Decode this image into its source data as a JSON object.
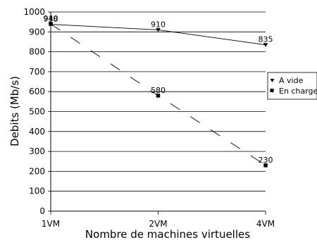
{
  "chart_data": {
    "type": "line",
    "x": [
      "1VM",
      "2VM",
      "4VM"
    ],
    "xlabel": "Nombre de machines virtuelles",
    "ylabel": "Debits (Mb/s)",
    "ylim": [
      0,
      1000
    ],
    "yticks": [
      "0",
      "100",
      "200",
      "300",
      "400",
      "500",
      "600",
      "700",
      "800",
      "900",
      "1000"
    ],
    "grid": "horizontal",
    "legend_position": "right",
    "series": [
      {
        "name": "A vide",
        "values": [
          938,
          910,
          835
        ],
        "labels": [
          "938",
          "910",
          "835"
        ],
        "marker": "triangle-down",
        "line": "solid",
        "color": "#000000"
      },
      {
        "name": "En charge",
        "values": [
          940,
          580,
          230
        ],
        "labels": [
          "940",
          "580",
          "230"
        ],
        "marker": "square",
        "line": "dashed",
        "color": "#000000"
      }
    ]
  }
}
